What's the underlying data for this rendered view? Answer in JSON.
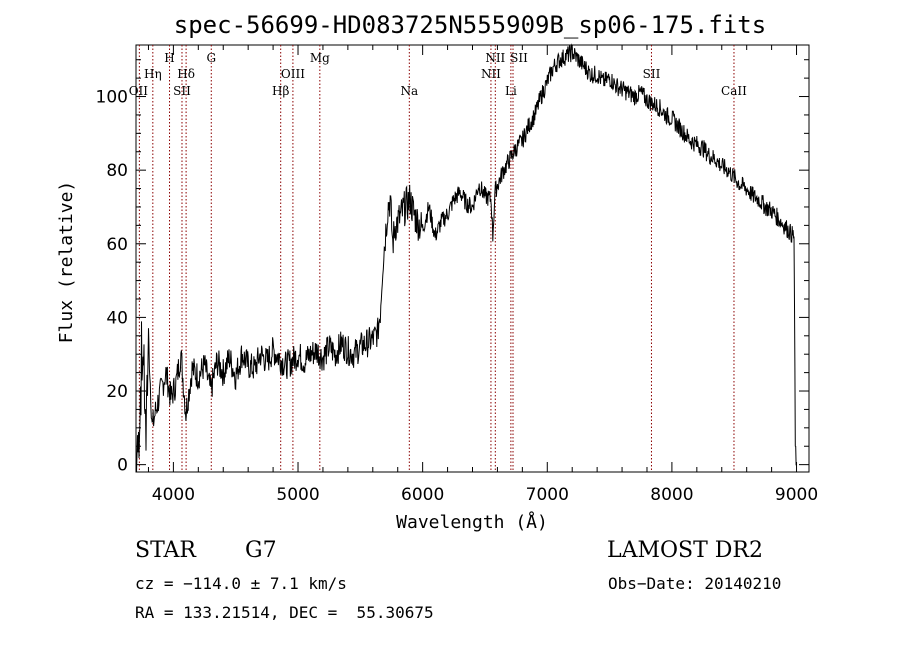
{
  "chart_data": {
    "type": "line",
    "title": "spec-56699-HD083725N555909B_sp06-175.fits",
    "xlabel": "Wavelength (Å)",
    "ylabel": "Flux (relative)",
    "xlim": [
      3700,
      9100
    ],
    "ylim": [
      -2,
      114
    ],
    "x_ticks": [
      4000,
      5000,
      6000,
      7000,
      8000,
      9000
    ],
    "y_ticks": [
      0,
      20,
      40,
      60,
      80,
      100
    ],
    "grid": false,
    "line_color": "#000000",
    "marker_color": "#8b0000",
    "series": [
      {
        "x": [
          3700,
          3720,
          3740,
          3760,
          3780,
          3800,
          3830,
          3860,
          3900,
          3940,
          3980,
          4020,
          4060,
          4100,
          4150,
          4200,
          4250,
          4300,
          4350,
          4400,
          4450,
          4500,
          4550,
          4600,
          4650,
          4700,
          4750,
          4800,
          4850,
          4900,
          4950,
          5000,
          5050,
          5100,
          5150,
          5200,
          5250,
          5300,
          5350,
          5400,
          5450,
          5500,
          5550,
          5600,
          5640,
          5660,
          5680,
          5700,
          5720,
          5740,
          5760,
          5780,
          5800,
          5830,
          5860,
          5900,
          5930,
          5960,
          6000,
          6050,
          6100,
          6150,
          6200,
          6250,
          6300,
          6350,
          6400,
          6450,
          6500,
          6550,
          6563,
          6580,
          6600,
          6650,
          6700,
          6750,
          6800,
          6850,
          6900,
          6950,
          7000,
          7050,
          7100,
          7150,
          7200,
          7250,
          7300,
          7350,
          7400,
          7450,
          7500,
          7550,
          7600,
          7650,
          7700,
          7750,
          7800,
          7850,
          7900,
          7950,
          8000,
          8050,
          8100,
          8150,
          8200,
          8250,
          8300,
          8350,
          8400,
          8450,
          8500,
          8550,
          8600,
          8650,
          8700,
          8750,
          8800,
          8850,
          8900,
          8950,
          8980,
          8990,
          9000
        ],
        "y": [
          2,
          5,
          25,
          30,
          8,
          35,
          10,
          15,
          20,
          25,
          18,
          22,
          30,
          14,
          26,
          24,
          27,
          20,
          28,
          25,
          29,
          24,
          30,
          27,
          26,
          30,
          28,
          31,
          29,
          27,
          28,
          30,
          28,
          30,
          31,
          29,
          32,
          30,
          33,
          31,
          30,
          32,
          33,
          34,
          36,
          42,
          55,
          62,
          70,
          72,
          60,
          65,
          66,
          68,
          70,
          72,
          68,
          66,
          64,
          70,
          62,
          66,
          68,
          72,
          74,
          71,
          70,
          76,
          73,
          72,
          62,
          74,
          76,
          80,
          83,
          86,
          88,
          92,
          95,
          100,
          104,
          108,
          110,
          111,
          112,
          110,
          108,
          106,
          106,
          104,
          105,
          103,
          102,
          101,
          100,
          101,
          99,
          98,
          97,
          95,
          94,
          92,
          90,
          88,
          87,
          86,
          84,
          83,
          81,
          80,
          78,
          76,
          75,
          73,
          72,
          70,
          69,
          67,
          65,
          63,
          62,
          5,
          0
        ]
      }
    ],
    "line_markers": [
      {
        "label": "OII",
        "wavelength": 3727,
        "row": 2,
        "dx": -1
      },
      {
        "label": "Hη",
        "wavelength": 3835,
        "row": 1,
        "dx": 0
      },
      {
        "label": "H",
        "wavelength": 3969,
        "row": 0,
        "dx": 0
      },
      {
        "label": "SII",
        "wavelength": 4069,
        "row": 2,
        "dx": 0
      },
      {
        "label": "Hδ",
        "wavelength": 4102,
        "row": 1,
        "dx": 0
      },
      {
        "label": "G",
        "wavelength": 4304,
        "row": 0,
        "dx": 0
      },
      {
        "label": "Hβ",
        "wavelength": 4861,
        "row": 2,
        "dx": 0
      },
      {
        "label": "OIII",
        "wavelength": 4959,
        "row": 1,
        "dx": 0
      },
      {
        "label": "Mg",
        "wavelength": 5175,
        "row": 0,
        "dx": 0
      },
      {
        "label": "Na",
        "wavelength": 5893,
        "row": 2,
        "dx": 0
      },
      {
        "label": "NII",
        "wavelength": 6548,
        "row": 1,
        "dx": 0
      },
      {
        "label": "NII",
        "wavelength": 6583,
        "row": 0,
        "dx": 0
      },
      {
        "label": "Li",
        "wavelength": 6708,
        "row": 2,
        "dx": 0
      },
      {
        "label": "SII",
        "wavelength": 6725,
        "row": 0,
        "dx": 6
      },
      {
        "label": "SII",
        "wavelength": 7836,
        "row": 1,
        "dx": 0
      },
      {
        "label": "CaII",
        "wavelength": 8498,
        "row": 2,
        "dx": 0
      }
    ]
  },
  "info": {
    "class_label": "STAR",
    "subclass_label": "G7",
    "survey": "LAMOST DR2",
    "cz_line": "cz = −114.0 ± 7.1 km/s",
    "obs_date_line": "Obs−Date: 20140210",
    "radec_line": "RA = 133.21514, DEC =  55.30675"
  }
}
